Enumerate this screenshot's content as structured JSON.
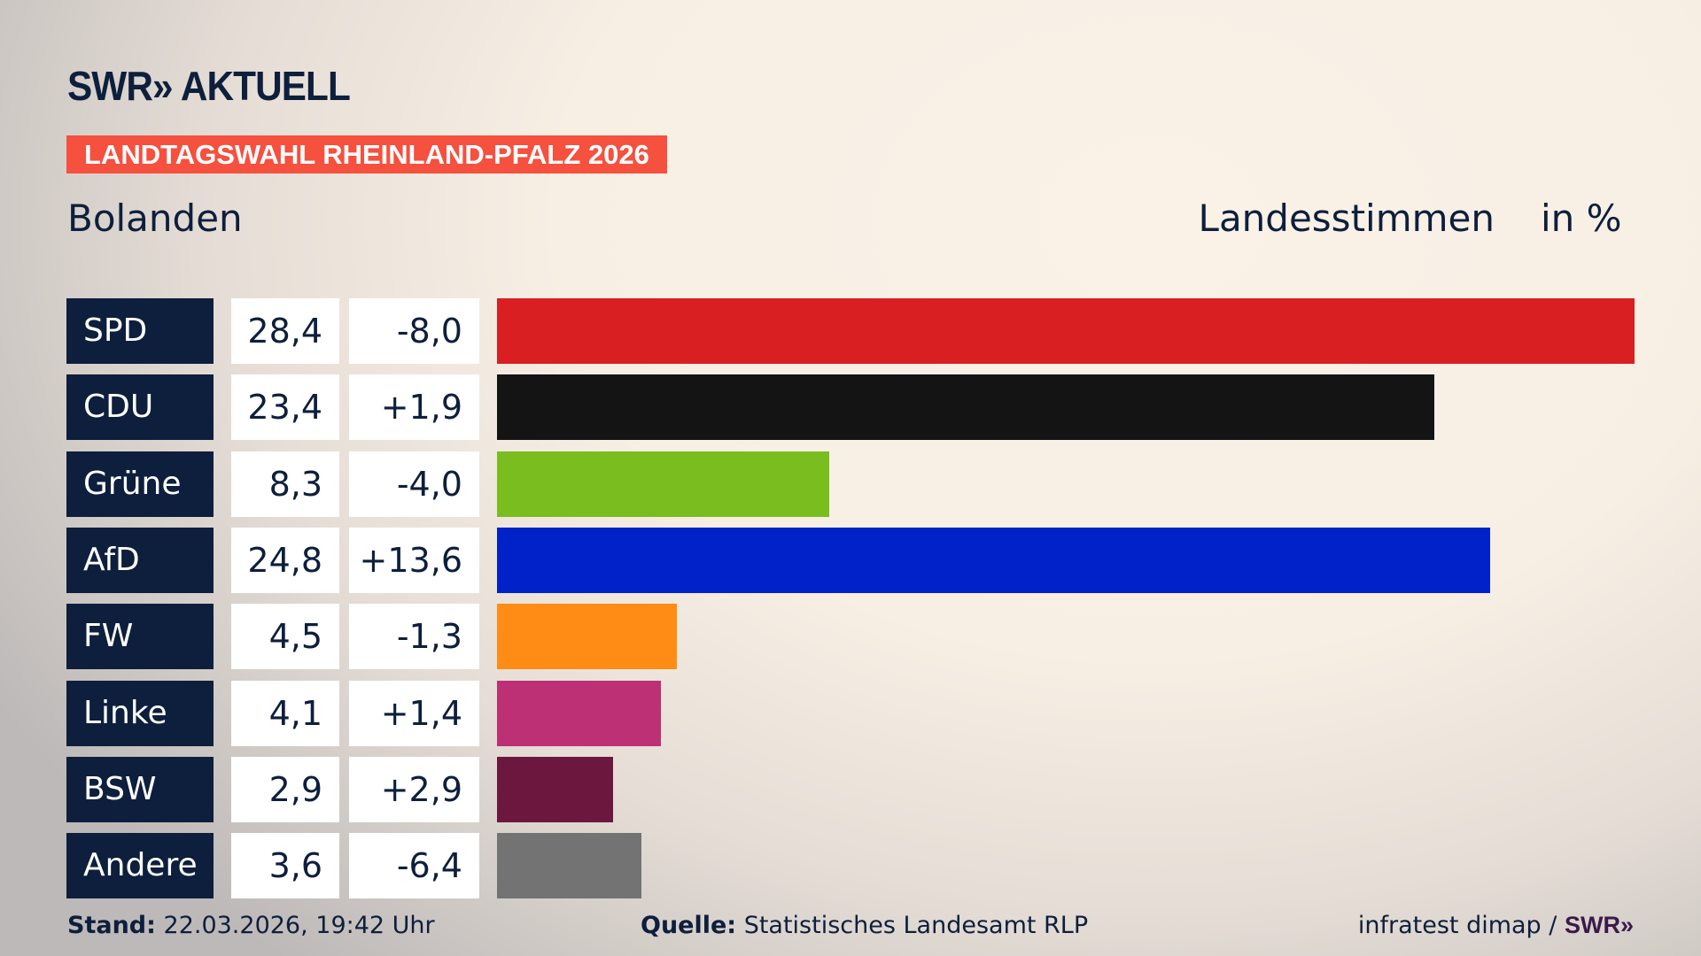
{
  "header": {
    "logo": "SWR» AKTUELL",
    "banner": "LANDTAGSWAHL RHEINLAND-PFALZ 2026",
    "region": "Bolanden",
    "measure": "Landesstimmen",
    "unit": "in %"
  },
  "chart_data": {
    "type": "bar",
    "orientation": "horizontal",
    "xlim": [
      0,
      28.4
    ],
    "categories": [
      "SPD",
      "CDU",
      "Grüne",
      "AfD",
      "FW",
      "Linke",
      "BSW",
      "Andere"
    ],
    "values": [
      28.4,
      23.4,
      8.3,
      24.8,
      4.5,
      4.1,
      2.9,
      3.6
    ],
    "values_label": [
      "28,4",
      "23,4",
      "8,3",
      "24,8",
      "4,5",
      "4,1",
      "2,9",
      "3,6"
    ],
    "diff_label": [
      "-8,0",
      "+1,9",
      "-4,0",
      "+13,6",
      "-1,3",
      "+1,4",
      "+2,9",
      "-6,4"
    ],
    "colors": [
      "#d91f22",
      "#141414",
      "#7abd1e",
      "#0022c8",
      "#ff8c14",
      "#bd3075",
      "#6b173e",
      "#737373"
    ]
  },
  "footer": {
    "stand_label": "Stand:",
    "stand": "22.03.2026, 19:42 Uhr",
    "source_label": "Quelle:",
    "source": "Statistisches Landesamt RLP",
    "credit": "infratest dimap /",
    "credit_logo": "SWR»"
  }
}
